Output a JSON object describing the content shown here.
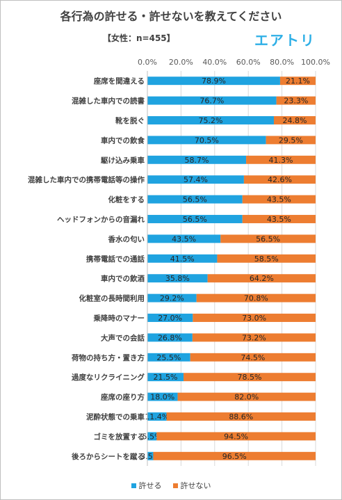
{
  "header": {
    "title": "各行為の許せる・許せないを教えてください",
    "subtitle": "【女性：n=455】",
    "brand": "エアトリ"
  },
  "colors": {
    "allow": "#1fa3e0",
    "disallow": "#ed7d31"
  },
  "chart_data": {
    "type": "bar",
    "orientation": "horizontal",
    "stacked": true,
    "x_ticks": [
      "0.0%",
      "20.0%",
      "40.0%",
      "60.0%",
      "80.0%",
      "100.0%"
    ],
    "xlim": [
      0,
      100
    ],
    "grid": true,
    "legend_position": "bottom",
    "categories": [
      "座席を間違える",
      "混雑した車内での読書",
      "靴を脱ぐ",
      "車内での飲食",
      "駆け込み乗車",
      "混雑した車内での携帯電話等の操作",
      "化粧をする",
      "ヘッドフォンからの音漏れ",
      "香水の匂い",
      "携帯電話での通話",
      "車内での飲酒",
      "化粧室の長時間利用",
      "乗降時のマナー",
      "大声での会話",
      "荷物の持ち方・置き方",
      "過度なリクライニング",
      "座席の座り方",
      "泥酔状態での乗車",
      "ゴミを放置する",
      "後ろからシートを蹴る"
    ],
    "series": [
      {
        "name": "許せる",
        "values": [
          78.9,
          76.7,
          75.2,
          70.5,
          58.7,
          57.4,
          56.5,
          56.5,
          43.5,
          41.5,
          35.8,
          29.2,
          27.0,
          26.8,
          25.5,
          21.5,
          18.0,
          11.4,
          5.5,
          3.5
        ],
        "labels": [
          "78.9%",
          "76.7%",
          "75.2%",
          "70.5%",
          "58.7%",
          "57.4%",
          "56.5%",
          "56.5%",
          "43.5%",
          "41.5%",
          "35.8%",
          "29.2%",
          "27.0%",
          "26.8%",
          "25.5%",
          "21.5%",
          "18.0%",
          "11.4%",
          "5.5%",
          "3.5%"
        ]
      },
      {
        "name": "許せない",
        "values": [
          21.1,
          23.3,
          24.8,
          29.5,
          41.3,
          42.6,
          43.5,
          43.5,
          56.5,
          58.5,
          64.2,
          70.8,
          73.0,
          73.2,
          74.5,
          78.5,
          82.0,
          88.6,
          94.5,
          96.5
        ],
        "labels": [
          "21.1%",
          "23.3%",
          "24.8%",
          "29.5%",
          "41.3%",
          "42.6%",
          "43.5%",
          "43.5%",
          "56.5%",
          "58.5%",
          "64.2%",
          "70.8%",
          "73.0%",
          "73.2%",
          "74.5%",
          "78.5%",
          "82.0%",
          "88.6%",
          "94.5%",
          "96.5%"
        ]
      }
    ]
  }
}
